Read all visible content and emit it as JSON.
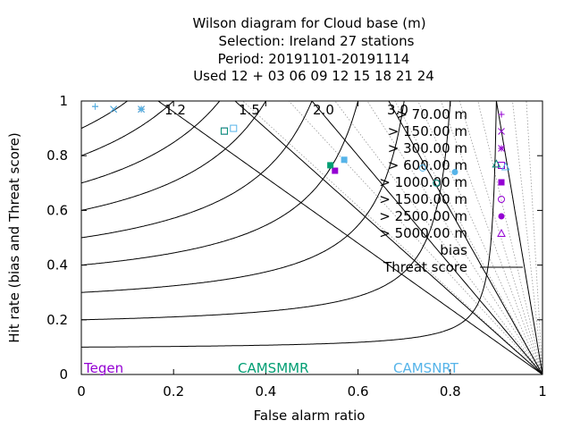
{
  "chart_data": {
    "type": "scatter",
    "title_lines": [
      "Wilson diagram  for Cloud base (m)",
      "Selection: Ireland     27 stations",
      "Period: 20191101-20191114",
      "Used  12 + 03 06 09 12 15 18 21 24"
    ],
    "xlabel": "False alarm ratio",
    "ylabel": "Hit rate (bias and Threat score)",
    "xlim": [
      0,
      1
    ],
    "ylim": [
      0,
      1
    ],
    "xticks": [
      "0",
      "0.2",
      "0.4",
      "0.6",
      "0.8",
      "1"
    ],
    "yticks": [
      "0",
      "0.2",
      "0.4",
      "0.6",
      "0.8",
      "1"
    ],
    "bias_labels": [
      "1.2",
      "1.5",
      "2.0",
      "3.0"
    ],
    "bias_values": [
      1.2,
      1.5,
      2.0,
      3.0
    ],
    "threat_score_levels": [
      0.1,
      0.2,
      0.3,
      0.4,
      0.5,
      0.6,
      0.7,
      0.8,
      0.9
    ],
    "legend": {
      "position": "top-right",
      "thresholds": [
        {
          "label": "> 70.00 m",
          "marker": "plus"
        },
        {
          "label": "> 150.00 m",
          "marker": "cross"
        },
        {
          "label": "> 300.00 m",
          "marker": "star"
        },
        {
          "label": "> 600.00 m",
          "marker": "square-open"
        },
        {
          "label": "> 1000.00 m",
          "marker": "square-filled"
        },
        {
          "label": "> 1500.00 m",
          "marker": "circle-open"
        },
        {
          "label": "> 2500.00 m",
          "marker": "circle-filled"
        },
        {
          "label": "> 5000.00 m",
          "marker": "triangle-open"
        }
      ],
      "bias_label": "bias",
      "threat_label": "Threat score"
    },
    "series": [
      {
        "name": "Tegen",
        "color": "#9400d3",
        "points": [
          {
            "threshold": "> 70.00 m",
            "far": 0.03,
            "hr": 0.98
          },
          {
            "threshold": "> 150.00 m",
            "far": 0.07,
            "hr": 0.97
          },
          {
            "threshold": "> 300.00 m",
            "far": 0.13,
            "hr": 0.97
          },
          {
            "threshold": "> 600.00 m",
            "far": 0.31,
            "hr": 0.89
          },
          {
            "threshold": "> 1000.00 m",
            "far": 0.55,
            "hr": 0.745
          },
          {
            "threshold": "> 1500.00 m",
            "far": 0.77,
            "hr": 0.7
          },
          {
            "threshold": "> 5000.00 m",
            "far": 0.9,
            "hr": 0.77
          }
        ]
      },
      {
        "name": "CAMSMMR",
        "color": "#009e73",
        "points": [
          {
            "threshold": "> 70.00 m",
            "far": 0.03,
            "hr": 0.98
          },
          {
            "threshold": "> 150.00 m",
            "far": 0.07,
            "hr": 0.97
          },
          {
            "threshold": "> 300.00 m",
            "far": 0.13,
            "hr": 0.97
          },
          {
            "threshold": "> 600.00 m",
            "far": 0.31,
            "hr": 0.89
          },
          {
            "threshold": "> 1000.00 m",
            "far": 0.54,
            "hr": 0.765
          },
          {
            "threshold": "> 1500.00 m",
            "far": 0.77,
            "hr": 0.7
          },
          {
            "threshold": "> 5000.00 m",
            "far": 0.9,
            "hr": 0.77
          }
        ]
      },
      {
        "name": "CAMSNRT",
        "color": "#56b4e9",
        "points": [
          {
            "threshold": "> 70.00 m",
            "far": 0.03,
            "hr": 0.98
          },
          {
            "threshold": "> 150.00 m",
            "far": 0.07,
            "hr": 0.97
          },
          {
            "threshold": "> 300.00 m",
            "far": 0.13,
            "hr": 0.97
          },
          {
            "threshold": "> 600.00 m",
            "far": 0.33,
            "hr": 0.9
          },
          {
            "threshold": "> 1000.00 m",
            "far": 0.57,
            "hr": 0.785
          },
          {
            "threshold": "> 1500.00 m",
            "far": 0.74,
            "hr": 0.755
          },
          {
            "threshold": "> 2500.00 m",
            "far": 0.81,
            "hr": 0.74
          },
          {
            "threshold": "> 5000.00 m",
            "far": 0.92,
            "hr": 0.76
          }
        ]
      }
    ]
  }
}
